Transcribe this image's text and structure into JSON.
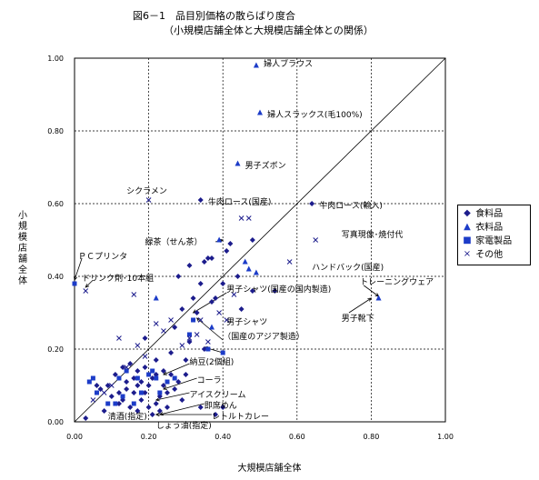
{
  "titles": {
    "line1": "図6－1　品目別価格の散らばり度合",
    "line2": "（小規模店舗全体と大規模店舗全体との関係）"
  },
  "chart_data": {
    "type": "scatter",
    "title": "図6－1　品目別価格の散らばり度合",
    "subtitle": "（小規模店舗全体と大規模店舗全体との関係）",
    "xlabel": "大規模店舗全体",
    "ylabel": "小規模店舗全体",
    "xlim": [
      0,
      1
    ],
    "ylim": [
      0,
      1
    ],
    "x_ticks": [
      "0.00",
      "0.20",
      "0.40",
      "0.60",
      "0.80",
      "1.00"
    ],
    "y_ticks": [
      "0.00",
      "0.20",
      "0.40",
      "0.60",
      "0.80",
      "1.00"
    ],
    "grid": true,
    "diagonal_line": true,
    "legend_position": "right",
    "series": [
      {
        "name": "食料品",
        "marker": "diamond",
        "color": "#1c1c8c",
        "points": [
          [
            0.03,
            0.01
          ],
          [
            0.06,
            0.1
          ],
          [
            0.07,
            0.09
          ],
          [
            0.08,
            0.03
          ],
          [
            0.09,
            0.1
          ],
          [
            0.1,
            0.07
          ],
          [
            0.11,
            0.13
          ],
          [
            0.12,
            0.08
          ],
          [
            0.12,
            0.05
          ],
          [
            0.13,
            0.15
          ],
          [
            0.13,
            0.06
          ],
          [
            0.14,
            0.11
          ],
          [
            0.14,
            0.09
          ],
          [
            0.15,
            0.16
          ],
          [
            0.15,
            0.04
          ],
          [
            0.16,
            0.12
          ],
          [
            0.16,
            0.08
          ],
          [
            0.17,
            0.1
          ],
          [
            0.17,
            0.14
          ],
          [
            0.17,
            0.03
          ],
          [
            0.18,
            0.11
          ],
          [
            0.18,
            0.06
          ],
          [
            0.19,
            0.23
          ],
          [
            0.19,
            0.08
          ],
          [
            0.19,
            0.15
          ],
          [
            0.2,
            0.1
          ],
          [
            0.2,
            0.04
          ],
          [
            0.21,
            0.12
          ],
          [
            0.21,
            0.02
          ],
          [
            0.22,
            0.17
          ],
          [
            0.22,
            0.05
          ],
          [
            0.22,
            0.13
          ],
          [
            0.23,
            0.07
          ],
          [
            0.23,
            0.03
          ],
          [
            0.24,
            0.1
          ],
          [
            0.24,
            0.14
          ],
          [
            0.25,
            0.04
          ],
          [
            0.25,
            0.08
          ],
          [
            0.26,
            0.13
          ],
          [
            0.26,
            0.19
          ],
          [
            0.27,
            0.26
          ],
          [
            0.27,
            0.09
          ],
          [
            0.28,
            0.4
          ],
          [
            0.28,
            0.11
          ],
          [
            0.29,
            0.31
          ],
          [
            0.29,
            0.06
          ],
          [
            0.3,
            0.17
          ],
          [
            0.3,
            0.13
          ],
          [
            0.31,
            0.43
          ],
          [
            0.31,
            0.22
          ],
          [
            0.32,
            0.34
          ],
          [
            0.33,
            0.3
          ],
          [
            0.34,
            0.38
          ],
          [
            0.34,
            0.04
          ],
          [
            0.35,
            0.44
          ],
          [
            0.35,
            0.2
          ],
          [
            0.36,
            0.45
          ],
          [
            0.37,
            0.33
          ],
          [
            0.37,
            0.45
          ],
          [
            0.38,
            0.34
          ],
          [
            0.38,
            0.02
          ],
          [
            0.4,
            0.38
          ],
          [
            0.4,
            0.04
          ],
          [
            0.41,
            0.47
          ],
          [
            0.42,
            0.49
          ],
          [
            0.44,
            0.4
          ],
          [
            0.45,
            0.31
          ],
          [
            0.48,
            0.5
          ],
          [
            0.48,
            0.36
          ],
          [
            0.54,
            0.36
          ],
          [
            0.34,
            0.61
          ],
          [
            0.64,
            0.6
          ]
        ]
      },
      {
        "name": "衣料品",
        "marker": "triangle",
        "color": "#1c3cc8",
        "points": [
          [
            0.49,
            0.98
          ],
          [
            0.5,
            0.85
          ],
          [
            0.44,
            0.71
          ],
          [
            0.22,
            0.34
          ],
          [
            0.39,
            0.5
          ],
          [
            0.46,
            0.44
          ],
          [
            0.47,
            0.42
          ],
          [
            0.49,
            0.41
          ],
          [
            0.37,
            0.26
          ],
          [
            0.82,
            0.34
          ]
        ]
      },
      {
        "name": "家電製品",
        "marker": "square",
        "color": "#1c3cc8",
        "points": [
          [
            0.0,
            0.38
          ],
          [
            0.04,
            0.11
          ],
          [
            0.05,
            0.12
          ],
          [
            0.06,
            0.08
          ],
          [
            0.09,
            0.05
          ],
          [
            0.11,
            0.05
          ],
          [
            0.12,
            0.12
          ],
          [
            0.13,
            0.07
          ],
          [
            0.14,
            0.14
          ],
          [
            0.16,
            0.05
          ],
          [
            0.17,
            0.12
          ],
          [
            0.18,
            0.08
          ],
          [
            0.2,
            0.13
          ],
          [
            0.21,
            0.14
          ],
          [
            0.22,
            0.12
          ],
          [
            0.23,
            0.08
          ],
          [
            0.25,
            0.11
          ],
          [
            0.27,
            0.12
          ],
          [
            0.31,
            0.24
          ],
          [
            0.32,
            0.28
          ],
          [
            0.36,
            0.2
          ],
          [
            0.4,
            0.19
          ]
        ]
      },
      {
        "name": "その他",
        "marker": "cross",
        "color": "#1c1c8c",
        "points": [
          [
            0.2,
            0.61
          ],
          [
            0.45,
            0.56
          ],
          [
            0.47,
            0.56
          ],
          [
            0.65,
            0.5
          ],
          [
            0.58,
            0.44
          ],
          [
            0.03,
            0.36
          ],
          [
            0.16,
            0.35
          ],
          [
            0.05,
            0.06
          ],
          [
            0.08,
            0.08
          ],
          [
            0.1,
            0.1
          ],
          [
            0.12,
            0.23
          ],
          [
            0.14,
            0.15
          ],
          [
            0.17,
            0.21
          ],
          [
            0.19,
            0.18
          ],
          [
            0.22,
            0.27
          ],
          [
            0.24,
            0.25
          ],
          [
            0.26,
            0.28
          ],
          [
            0.29,
            0.21
          ],
          [
            0.31,
            0.23
          ],
          [
            0.34,
            0.28
          ],
          [
            0.36,
            0.22
          ],
          [
            0.39,
            0.3
          ],
          [
            0.41,
            0.28
          ],
          [
            0.43,
            0.35
          ],
          [
            0.33,
            0.24
          ]
        ]
      }
    ],
    "annotations": [
      {
        "text": "婦人ブラウス",
        "x": 0.51,
        "y": 0.985,
        "anchor": "start"
      },
      {
        "text": "婦人スラックス(毛100%)",
        "x": 0.52,
        "y": 0.845,
        "anchor": "start"
      },
      {
        "text": "男子ズボン",
        "x": 0.46,
        "y": 0.705,
        "anchor": "start"
      },
      {
        "text": "シクラメン",
        "x": 0.14,
        "y": 0.635,
        "anchor": "start"
      },
      {
        "text": "牛肉ロース(国産)",
        "x": 0.36,
        "y": 0.605,
        "anchor": "start"
      },
      {
        "text": "牛肉ロース(輸入)",
        "x": 0.66,
        "y": 0.595,
        "anchor": "start"
      },
      {
        "text": "写真現像･焼付代",
        "x": 0.72,
        "y": 0.515,
        "anchor": "start"
      },
      {
        "text": "緑茶（せん茶）",
        "x": 0.19,
        "y": 0.495,
        "anchor": "start"
      },
      {
        "text": "ハンドバック(国産)",
        "x": 0.64,
        "y": 0.425,
        "anchor": "start"
      },
      {
        "text": "ＰＣプリンタ",
        "x": 0.01,
        "y": 0.455,
        "anchor": "start"
      },
      {
        "text": "ドリンク剤･10本組",
        "x": 0.02,
        "y": 0.395,
        "anchor": "start"
      },
      {
        "text": "トレーニングウェア",
        "x": 0.77,
        "y": 0.385,
        "anchor": "start"
      },
      {
        "text": "男子シャツ(国産の国内製造)",
        "x": 0.41,
        "y": 0.365,
        "anchor": "start"
      },
      {
        "text": "男子靴下",
        "x": 0.72,
        "y": 0.285,
        "anchor": "start"
      },
      {
        "text": "男子シャツ",
        "x": 0.41,
        "y": 0.275,
        "anchor": "start"
      },
      {
        "text": "（国産のアジア製造）",
        "x": 0.4,
        "y": 0.235,
        "anchor": "start"
      },
      {
        "text": "納豆(2個組)",
        "x": 0.31,
        "y": 0.165,
        "anchor": "start"
      },
      {
        "text": "コーラ",
        "x": 0.33,
        "y": 0.115,
        "anchor": "start"
      },
      {
        "text": "アイスクリーム",
        "x": 0.31,
        "y": 0.075,
        "anchor": "start"
      },
      {
        "text": "即席めん",
        "x": 0.35,
        "y": 0.045,
        "anchor": "start"
      },
      {
        "text": "レトルトカレー",
        "x": 0.37,
        "y": 0.015,
        "anchor": "start"
      },
      {
        "text": "清酒(指定)",
        "x": 0.09,
        "y": 0.015,
        "anchor": "start"
      },
      {
        "text": "しょう油(指定)",
        "x": 0.22,
        "y": -0.01,
        "anchor": "start"
      }
    ],
    "arrows": [
      [
        0.4,
        0.225,
        0.33,
        0.285
      ],
      [
        0.4,
        0.19,
        0.35,
        0.205
      ],
      [
        0.31,
        0.16,
        0.24,
        0.13
      ],
      [
        0.33,
        0.12,
        0.24,
        0.09
      ],
      [
        0.31,
        0.08,
        0.22,
        0.06
      ],
      [
        0.35,
        0.05,
        0.23,
        0.02
      ],
      [
        0.37,
        0.02,
        0.22,
        0.02
      ],
      [
        0.41,
        0.355,
        0.32,
        0.3
      ],
      [
        0.78,
        0.375,
        0.82,
        0.345
      ],
      [
        0.74,
        0.3,
        0.8,
        0.34
      ],
      [
        0.38,
        0.495,
        0.4,
        0.5
      ],
      [
        0.02,
        0.45,
        0.0,
        0.39
      ],
      [
        0.05,
        0.39,
        0.03,
        0.37
      ]
    ]
  },
  "legend": {
    "items": [
      {
        "label": "食料品",
        "symbol": "◆"
      },
      {
        "label": "衣料品",
        "symbol": "▲"
      },
      {
        "label": "家電製品",
        "symbol": "■"
      },
      {
        "label": "その他",
        "symbol": "×"
      }
    ]
  },
  "colors": {
    "food": "#1c1c8c",
    "clothing": "#1c3cc8",
    "appliances": "#1c3cc8",
    "other": "#1c1c8c"
  }
}
